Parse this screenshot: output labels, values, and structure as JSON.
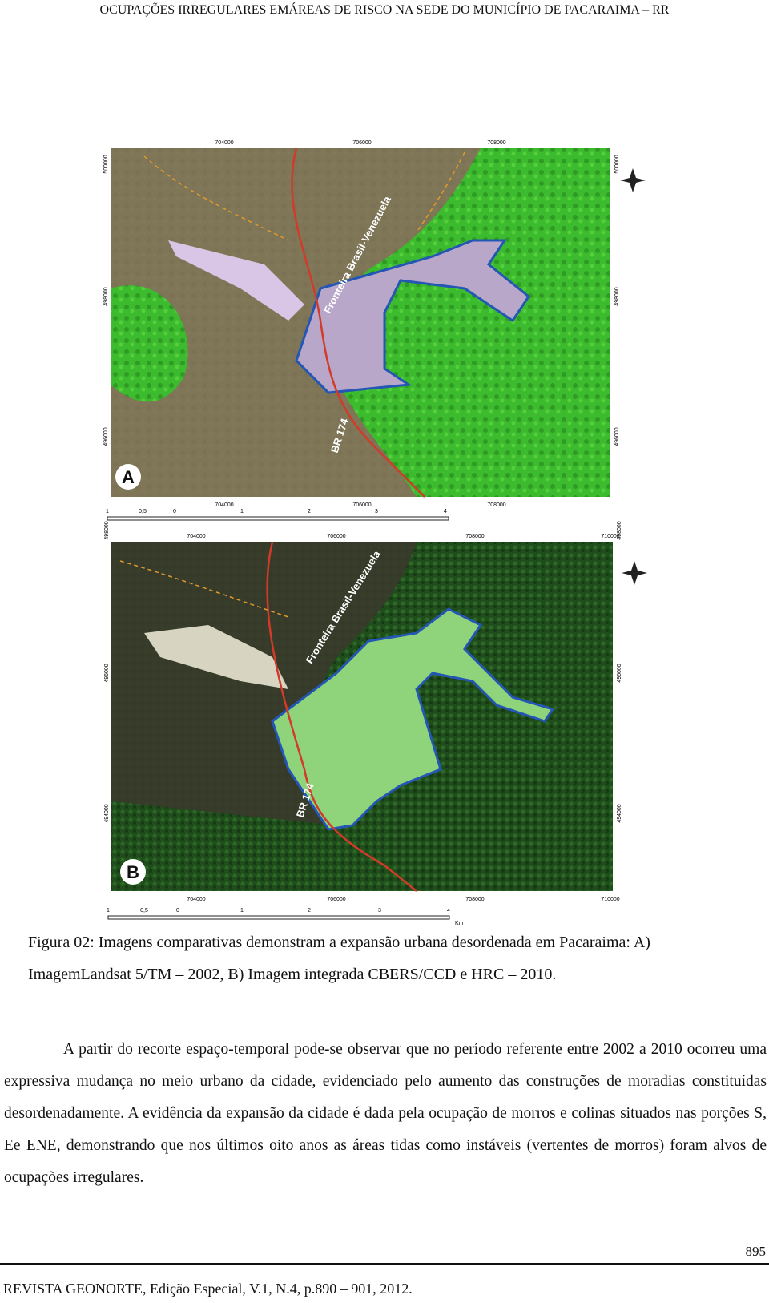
{
  "header": {
    "running_title": "OCUPAÇÕES IRREGULARES EMÁREAS DE RISCO NA SEDE DO MUNICÍPIO DE PACARAIMA – RR"
  },
  "figure": {
    "panels": [
      {
        "label": "A",
        "border": "Fronteira Brasil-Venezuela",
        "road": "BR 174",
        "top_ticks": [
          "704000",
          "706000",
          "708000"
        ],
        "bottom_ticks": [
          "704000",
          "706000",
          "708000"
        ],
        "left_ticks": [
          "500000",
          "498000",
          "496000"
        ],
        "right_ticks": [
          "500000",
          "498000",
          "496000"
        ],
        "scale": [
          "1",
          "0,5",
          "0",
          "1",
          "2",
          "3",
          "4"
        ]
      },
      {
        "label": "B",
        "border": "Fronteira Brasil-Venezuela",
        "road": "BR 174",
        "top_ticks": [
          "704000",
          "706000",
          "708000",
          "710000"
        ],
        "bottom_ticks": [
          "704000",
          "706000",
          "708000",
          "710000"
        ],
        "left_ticks": [
          "498000",
          "496000",
          "494000"
        ],
        "right_ticks": [
          "498000",
          "496000",
          "494000"
        ],
        "scale": [
          "1",
          "0,5",
          "0",
          "1",
          "2",
          "3",
          "4"
        ],
        "scale_unit": "Km"
      }
    ],
    "caption": [
      "Figura 02: Imagens comparativas demonstram a expansão urbana desordenada em Pacaraima: A)",
      "ImagemLandsat 5/TM – 2002, B) Imagem integrada CBERS/CCD e HRC – 2010."
    ]
  },
  "body": {
    "paragraph": "A partir do recorte espaço-temporal pode-se observar que no período referente entre 2002 a 2010 ocorreu uma expressiva mudança no meio urbano da cidade, evidenciado pelo aumento das construções de moradias constituídas desordenadamente. A evidência da expansão da cidade é dada pela ocupação de morros e colinas situados nas porções S, Ee ENE, demonstrando que nos últimos oito anos as áreas tidas como instáveis (vertentes de morros) foram alvos de ocupações irregulares."
  },
  "footer": {
    "page_number": "895",
    "citation": "REVISTA GEONORTE, Edição Especial, V.1, N.4, p.890 – 901, 2012."
  }
}
